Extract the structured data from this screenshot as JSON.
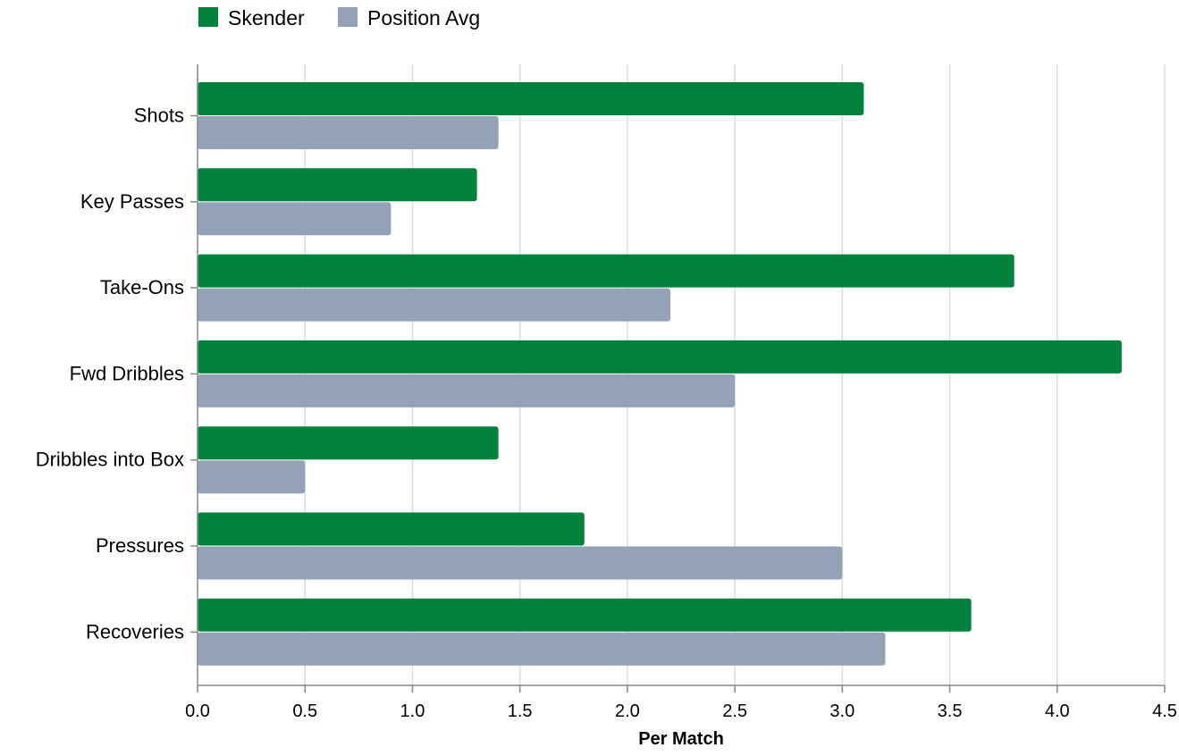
{
  "chart_data": {
    "type": "bar",
    "orientation": "horizontal",
    "categories": [
      "Shots",
      "Key Passes",
      "Take-Ons",
      "Fwd Dribbles",
      "Dribbles into Box",
      "Pressures",
      "Recoveries"
    ],
    "series": [
      {
        "name": "Skender",
        "values": [
          3.1,
          1.3,
          3.8,
          4.3,
          1.4,
          1.8,
          3.6
        ],
        "color": "#03823e"
      },
      {
        "name": "Position Avg",
        "values": [
          1.4,
          0.9,
          2.2,
          2.5,
          0.5,
          3.0,
          3.2
        ],
        "color": "#94a2b7"
      }
    ],
    "xlabel": "Per Match",
    "ylabel": "",
    "xlim": [
      0,
      4.5
    ],
    "x_ticks": [
      "0.0",
      "0.5",
      "1.0",
      "1.5",
      "2.0",
      "2.5",
      "3.0",
      "3.5",
      "4.0",
      "4.5"
    ],
    "grid": "vertical",
    "legend_position": "top-left"
  }
}
